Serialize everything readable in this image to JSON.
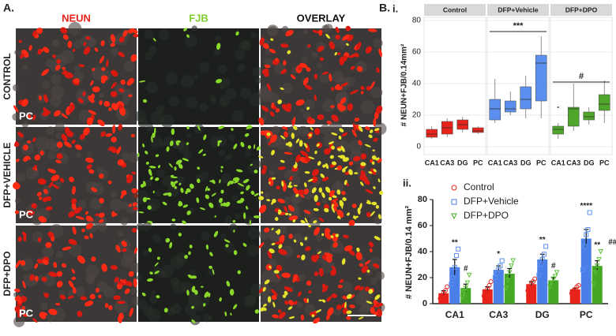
{
  "panel_a": {
    "label": "A.",
    "column_titles": [
      "NEUN",
      "FJB",
      "OVERLAY"
    ],
    "row_labels": [
      "CONTROL",
      "DFP+VEHICLE",
      "DFP+DPO"
    ],
    "region_label": "PC"
  },
  "panel_b_label": "B.",
  "chart_data": [
    {
      "type": "box",
      "panel": "i.",
      "ylabel": "# NEUN+FJB/0.14mm²",
      "categories": [
        "CA1",
        "CA3",
        "DG",
        "PC"
      ],
      "ylim": [
        -5,
        82
      ],
      "yticks": [
        0,
        20,
        40,
        60,
        80
      ],
      "grid": true,
      "series": [
        {
          "name": "Control",
          "color": "#e8231c",
          "boxes": [
            [
              5,
              6,
              8,
              11,
              13
            ],
            [
              6,
              8,
              12,
              16,
              18
            ],
            [
              9,
              11,
              14,
              17,
              19
            ],
            [
              8,
              9,
              10,
              12,
              13
            ]
          ],
          "outliers": [
            [],
            [],
            [],
            []
          ]
        },
        {
          "name": "DFP+Vehicle",
          "color": "#5a8ff0",
          "annotation": "***",
          "boxes": [
            [
              15,
              17,
              24,
              30,
              43
            ],
            [
              20,
              22,
              24,
              29,
              35
            ],
            [
              18,
              24,
              30,
              38,
              45
            ],
            [
              18,
              29,
              53,
              58,
              70
            ]
          ],
          "outliers": [
            [],
            [],
            [],
            []
          ]
        },
        {
          "name": "DFP+DPO",
          "color": "#4ea72a",
          "annotation": "#",
          "boxes": [
            [
              5,
              8,
              11,
              13,
              15
            ],
            [
              10,
              13,
              24,
              25,
              40
            ],
            [
              14,
              17,
              19,
              22,
              25
            ],
            [
              15,
              23,
              27,
              33,
              42
            ]
          ],
          "outliers": [
            [
              25
            ],
            [],
            [],
            []
          ]
        }
      ]
    },
    {
      "type": "bar",
      "panel": "ii.",
      "ylabel": "# NEUN+FJB/0.14 mm²",
      "categories": [
        "CA1",
        "CA3",
        "DG",
        "PC"
      ],
      "ylim": [
        0,
        80
      ],
      "yticks": [
        0,
        20,
        40,
        60,
        80
      ],
      "legend": "top-left",
      "series": [
        {
          "name": "Control",
          "color": "#e8231c",
          "marker": "circle",
          "values": [
            8,
            11,
            15,
            11
          ],
          "errors": [
            2,
            2,
            2,
            1
          ],
          "points": [
            [
              4,
              6,
              8,
              10,
              13
            ],
            [
              6,
              9,
              11,
              14,
              17
            ],
            [
              10,
              13,
              15,
              17,
              19
            ],
            [
              8,
              10,
              11,
              13,
              14
            ]
          ],
          "annotations": [
            [],
            [],
            [],
            []
          ]
        },
        {
          "name": "DFP+Vehicle",
          "color": "#4a7fe8",
          "marker": "square",
          "values": [
            28,
            26,
            34,
            50
          ],
          "errors": [
            6,
            3,
            4,
            7
          ],
          "points": [
            [
              15,
              20,
              28,
              37,
              42
            ],
            [
              20,
              24,
              26,
              29,
              33
            ],
            [
              22,
              30,
              34,
              38,
              44
            ],
            [
              26,
              44,
              53,
              57,
              70
            ]
          ],
          "annotations": [
            [
              "**"
            ],
            [
              "*"
            ],
            [
              "**"
            ],
            [
              "****"
            ]
          ]
        },
        {
          "name": "DFP+DPO",
          "color": "#44a824",
          "marker": "triangle",
          "values": [
            12,
            23,
            18,
            29
          ],
          "errors": [
            3,
            4,
            2,
            4
          ],
          "points": [
            [
              5,
              9,
              12,
              16,
              22
            ],
            [
              12,
              18,
              24,
              29,
              33
            ],
            [
              13,
              16,
              19,
              21,
              24
            ],
            [
              15,
              24,
              29,
              34,
              40
            ]
          ],
          "annotations": [
            [
              "#"
            ],
            [],
            [
              "#"
            ],
            [
              "**",
              "###"
            ]
          ]
        }
      ]
    }
  ]
}
